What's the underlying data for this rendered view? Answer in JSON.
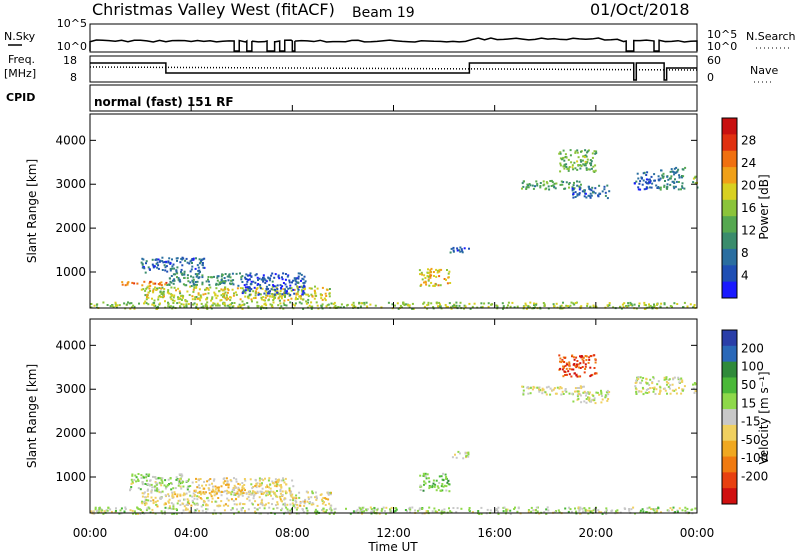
{
  "header": {
    "site": "Christmas Valley West (fitACF)",
    "beam": "Beam 19",
    "date": "01/Oct/2018"
  },
  "side_labels": {
    "nsky": "N.Sky",
    "nsearch": "N.Search",
    "freq": "Freq.",
    "freq_unit": "[MHz]",
    "nave": "Nave",
    "cpid": "CPID"
  },
  "mode_label": "normal (fast) 151 RF",
  "noise_panel": {
    "y_ticks": [
      "10^5",
      "10^0"
    ],
    "y_ticks_right": [
      "10^5",
      "10^0"
    ]
  },
  "freq_panel": {
    "y_ticks": [
      "18",
      "8"
    ],
    "y_ticks_right": [
      "60",
      "0"
    ]
  },
  "axes": {
    "ylabel": "Slant Range [km]",
    "xlabel": "Time UT",
    "y_ticks": [
      "1000",
      "2000",
      "3000",
      "4000"
    ],
    "x_ticks": [
      "00:00",
      "04:00",
      "08:00",
      "12:00",
      "16:00",
      "20:00",
      "00:00"
    ]
  },
  "power_bar": {
    "label": "Power [dB]",
    "ticks": [
      "4",
      "8",
      "12",
      "16",
      "20",
      "24",
      "28"
    ],
    "colors": [
      "#1a1aff",
      "#1f4fb4",
      "#2a6ea0",
      "#3a8c6c",
      "#55a850",
      "#8bc43a",
      "#d8d020",
      "#f0a018",
      "#f07010",
      "#e03010",
      "#c81010"
    ]
  },
  "velocity_bar": {
    "label": "Velocity [m s⁻¹]",
    "ticks": [
      "200",
      "100",
      "50",
      "15",
      "-15",
      "-50",
      "-100",
      "-200"
    ],
    "colors": [
      "#2a3ea8",
      "#2a68b8",
      "#2f8a3a",
      "#4ab838",
      "#8ed84a",
      "#c8c8c8",
      "#f0d060",
      "#f0a820",
      "#f07a10",
      "#e84010",
      "#d01010"
    ]
  },
  "chart_data": [
    {
      "type": "heatmap",
      "title": "",
      "xlabel": "Time UT",
      "ylabel": "Slant Range [km]",
      "xlim_hours": [
        0,
        24
      ],
      "ylim_km": [
        180,
        4600
      ],
      "colorbar_label": "Power [dB]",
      "colorbar_range": [
        0,
        32
      ],
      "regions": [
        {
          "t": [
            0.0,
            23.9
          ],
          "r": [
            180,
            330
          ],
          "v": 16
        },
        {
          "t": [
            2.0,
            9.5
          ],
          "r": [
            350,
            700
          ],
          "v": 18
        },
        {
          "t": [
            1.0,
            3.0
          ],
          "r": [
            700,
            800
          ],
          "v": 24
        },
        {
          "t": [
            3.0,
            6.0
          ],
          "r": [
            700,
            1000
          ],
          "v": 10
        },
        {
          "t": [
            2.0,
            4.5
          ],
          "r": [
            1000,
            1350
          ],
          "v": 6
        },
        {
          "t": [
            6.0,
            8.5
          ],
          "r": [
            500,
            1000
          ],
          "v": 5
        },
        {
          "t": [
            13.0,
            14.2
          ],
          "r": [
            700,
            1100
          ],
          "v": 20
        },
        {
          "t": [
            14.2,
            15.0
          ],
          "r": [
            1450,
            1600
          ],
          "v": 6
        },
        {
          "t": [
            17.0,
            19.5
          ],
          "r": [
            2900,
            3100
          ],
          "v": 12
        },
        {
          "t": [
            18.5,
            20.0
          ],
          "r": [
            3300,
            3800
          ],
          "v": 14
        },
        {
          "t": [
            19.0,
            20.5
          ],
          "r": [
            2700,
            3000
          ],
          "v": 6
        },
        {
          "t": [
            21.5,
            22.5
          ],
          "r": [
            2900,
            3300
          ],
          "v": 6
        },
        {
          "t": [
            22.5,
            23.5
          ],
          "r": [
            2900,
            3400
          ],
          "v": 10
        },
        {
          "t": [
            23.8,
            24.0
          ],
          "r": [
            2900,
            3200
          ],
          "v": 14
        }
      ]
    },
    {
      "type": "heatmap",
      "title": "",
      "xlabel": "Time UT",
      "ylabel": "Slant Range [km]",
      "xlim_hours": [
        0,
        24
      ],
      "ylim_km": [
        180,
        4600
      ],
      "colorbar_label": "Velocity [m s⁻¹]",
      "colorbar_range": [
        -250,
        250
      ],
      "regions": [
        {
          "t": [
            0.0,
            23.9
          ],
          "r": [
            180,
            330
          ],
          "v": 20
        },
        {
          "t": [
            2.0,
            9.5
          ],
          "r": [
            350,
            700
          ],
          "v": -20
        },
        {
          "t": [
            1.5,
            4.0
          ],
          "r": [
            700,
            1100
          ],
          "v": 30
        },
        {
          "t": [
            4.0,
            6.0
          ],
          "r": [
            600,
            1000
          ],
          "v": -40
        },
        {
          "t": [
            6.0,
            8.0
          ],
          "r": [
            600,
            1000
          ],
          "v": -20
        },
        {
          "t": [
            13.0,
            14.2
          ],
          "r": [
            700,
            1100
          ],
          "v": 60
        },
        {
          "t": [
            14.2,
            15.0
          ],
          "r": [
            1450,
            1600
          ],
          "v": -20
        },
        {
          "t": [
            17.0,
            19.5
          ],
          "r": [
            2900,
            3100
          ],
          "v": 0
        },
        {
          "t": [
            18.5,
            20.0
          ],
          "r": [
            3300,
            3800
          ],
          "v": -180
        },
        {
          "t": [
            19.0,
            20.5
          ],
          "r": [
            2700,
            3000
          ],
          "v": 0
        },
        {
          "t": [
            21.5,
            23.5
          ],
          "r": [
            2900,
            3300
          ],
          "v": 0
        },
        {
          "t": [
            23.8,
            24.0
          ],
          "r": [
            2900,
            3200
          ],
          "v": 0
        }
      ]
    }
  ]
}
